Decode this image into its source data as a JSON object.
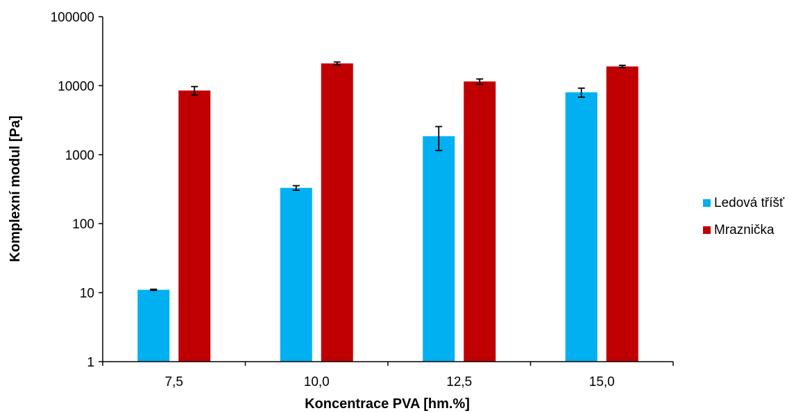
{
  "chart_data": {
    "type": "bar",
    "categories": [
      "7,5",
      "10,0",
      "12,5",
      "15,0"
    ],
    "series": [
      {
        "name": "Ledová tříšť",
        "color": "#00b0f0",
        "values": [
          11,
          330,
          1850,
          8000
        ],
        "errors": [
          0.2,
          25,
          700,
          1200
        ]
      },
      {
        "name": "Mraznička",
        "color": "#c00000",
        "values": [
          8500,
          21000,
          11500,
          19000
        ],
        "errors": [
          1200,
          1000,
          1000,
          700
        ]
      }
    ],
    "xlabel": "Koncentrace PVA [hm.%]",
    "ylabel": "Komplexní modul [Pa]",
    "yscale": "log",
    "ylim": [
      1,
      100000
    ],
    "yticks": [
      "1",
      "10",
      "100",
      "1000",
      "10000",
      "100000"
    ],
    "grid": false,
    "legend_position": "right"
  }
}
